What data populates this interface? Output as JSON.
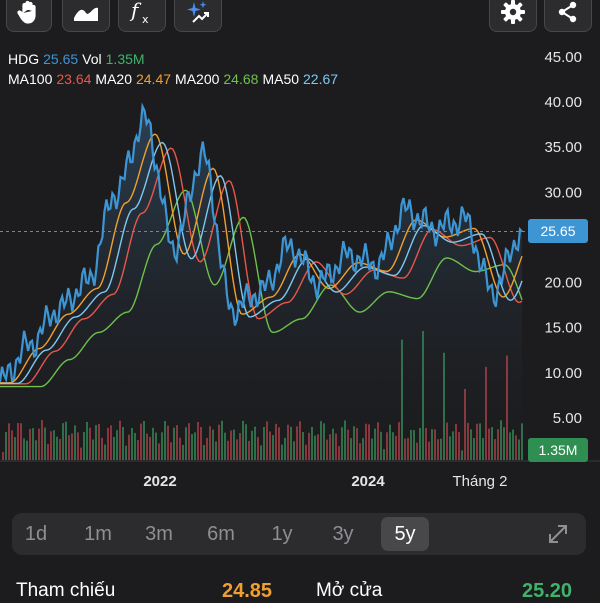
{
  "toolbar": {
    "left_icons": [
      "hand-icon",
      "line-chart-icon",
      "function-icon",
      "sparkle-icon"
    ],
    "right_icons": [
      "gear-icon",
      "share-icon"
    ]
  },
  "legend": {
    "symbol": "HDG",
    "price": "25.65",
    "vol_label": "Vol",
    "volume": "1.35M",
    "ma": [
      {
        "label": "MA100",
        "value": "23.64",
        "color": "#e8574a"
      },
      {
        "label": "MA20",
        "value": "24.47",
        "color": "#f0a030"
      },
      {
        "label": "MA200",
        "value": "24.68",
        "color": "#6cc24a"
      },
      {
        "label": "MA50",
        "value": "22.67",
        "color": "#7ec8f0"
      }
    ]
  },
  "chart_data": {
    "type": "line",
    "symbol": "HDG",
    "y_ticks": [
      "45.00",
      "40.00",
      "35.00",
      "30.00",
      "25.00",
      "20.00",
      "15.00",
      "10.00",
      "5.00"
    ],
    "x_ticks": [
      "2022",
      "2024",
      "Tháng 2"
    ],
    "ylim": [
      0,
      45
    ],
    "last_price": 25.65,
    "last_price_label": "25.65",
    "last_volume_label": "1.35M",
    "colors": {
      "price": "#3d95d4",
      "up": "#3fb36b",
      "down": "#e0505a",
      "ma100": "#e8574a",
      "ma20": "#f0a030",
      "ma200": "#6cc24a",
      "ma50": "#7ec8f0"
    },
    "x": [
      "2020-11",
      "2021-03",
      "2021-07",
      "2021-11",
      "2022-01",
      "2022-03",
      "2022-06",
      "2022-08",
      "2022-11",
      "2023-01",
      "2023-05",
      "2023-09",
      "2023-12",
      "2024-03",
      "2024-06",
      "2024-09",
      "2024-12",
      "2025-02",
      "2025-03"
    ],
    "series": [
      {
        "name": "HDG",
        "values": [
          9,
          13,
          17,
          20,
          30,
          38,
          24,
          34,
          17,
          19,
          24,
          20,
          23,
          22,
          28,
          26,
          27,
          19,
          25.65
        ]
      }
    ]
  },
  "range_tabs": [
    "1d",
    "1m",
    "3m",
    "6m",
    "1y",
    "3y",
    "5y"
  ],
  "active_range": "5y",
  "expand_icon": "expand-icon",
  "stats": {
    "ref_label": "Tham chiếu",
    "ref_value": "24.85",
    "open_label": "Mở cửa",
    "open_value": "25.20"
  }
}
